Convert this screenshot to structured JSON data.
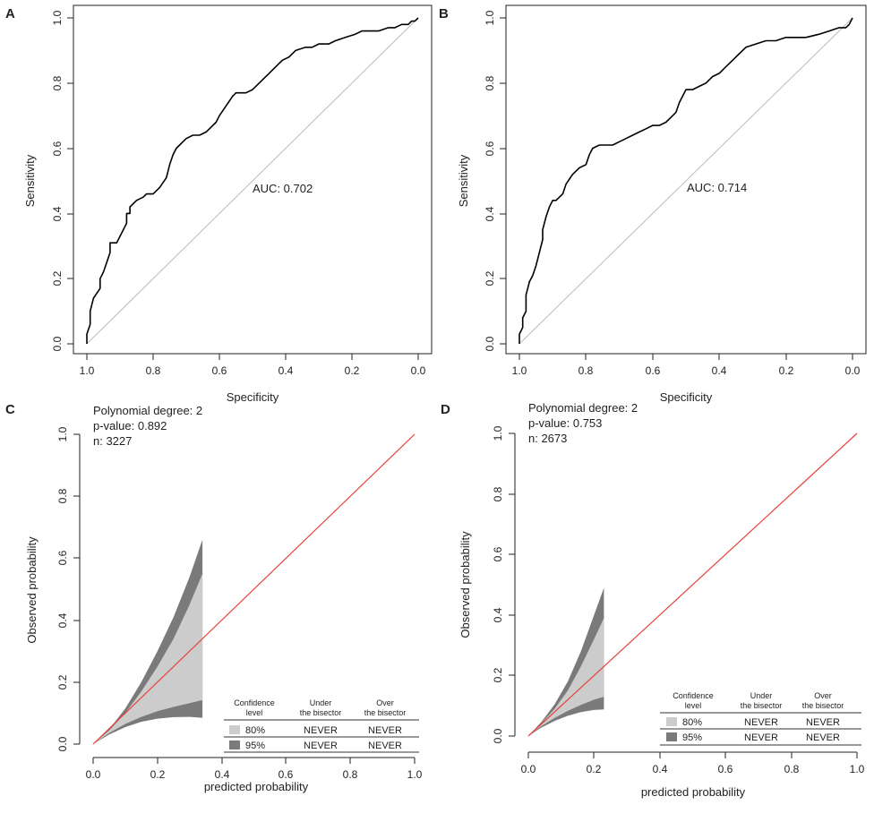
{
  "figure": {
    "panels": [
      {
        "letter": "A",
        "kind": "roc",
        "xlabel": "Specificity",
        "ylabel": "Sensitivity",
        "x_ticks": [
          "1.0",
          "0.8",
          "0.6",
          "0.4",
          "0.2",
          "0.0"
        ],
        "y_ticks": [
          "0.0",
          "0.2",
          "0.4",
          "0.6",
          "0.8",
          "1.0"
        ],
        "annotation": "AUC: 0.702"
      },
      {
        "letter": "B",
        "kind": "roc",
        "xlabel": "Specificity",
        "ylabel": "Sensitivity",
        "x_ticks": [
          "1.0",
          "0.8",
          "0.6",
          "0.4",
          "0.2",
          "0.0"
        ],
        "y_ticks": [
          "0.0",
          "0.2",
          "0.4",
          "0.6",
          "0.8",
          "1.0"
        ],
        "annotation": "AUC: 0.714"
      },
      {
        "letter": "C",
        "kind": "calibration",
        "xlabel": "predicted probability",
        "ylabel": "Observed probability",
        "x_ticks": [
          "0.0",
          "0.2",
          "0.4",
          "0.6",
          "0.8",
          "1.0"
        ],
        "y_ticks": [
          "0.0",
          "0.2",
          "0.4",
          "0.6",
          "0.8",
          "1.0"
        ],
        "stats": [
          "Polynomial degree: 2",
          "p-value: 0.892",
          "n: 3227"
        ],
        "legend": {
          "headers": [
            "Confidence\nlevel",
            "Under\nthe bisector",
            "Over\nthe bisector"
          ],
          "rows": [
            [
              "80%",
              "NEVER",
              "NEVER"
            ],
            [
              "95%",
              "NEVER",
              "NEVER"
            ]
          ]
        }
      },
      {
        "letter": "D",
        "kind": "calibration",
        "xlabel": "predicted probability",
        "ylabel": "Observed probability",
        "x_ticks": [
          "0.0",
          "0.2",
          "0.4",
          "0.6",
          "0.8",
          "1.0"
        ],
        "y_ticks": [
          "0.0",
          "0.2",
          "0.4",
          "0.6",
          "0.8",
          "1.0"
        ],
        "stats": [
          "Polynomial degree: 2",
          "p-value: 0.753",
          "n: 2673"
        ],
        "legend": {
          "headers": [
            "Confidence\nlevel",
            "Under\nthe bisector",
            "Over\nthe bisector"
          ],
          "rows": [
            [
              "80%",
              "NEVER",
              "NEVER"
            ],
            [
              "95%",
              "NEVER",
              "NEVER"
            ]
          ]
        }
      }
    ]
  },
  "chart_data": [
    {
      "panel": "A",
      "type": "line",
      "title": "",
      "xlabel": "Specificity",
      "ylabel": "Sensitivity",
      "xlim": [
        1.0,
        0.0
      ],
      "ylim": [
        0.0,
        1.0
      ],
      "annotations": [
        "AUC: 0.702"
      ],
      "series": [
        {
          "name": "ROC curve",
          "color": "#000000",
          "x": [
            1.0,
            1.0,
            0.99,
            0.99,
            0.98,
            0.98,
            0.96,
            0.96,
            0.95,
            0.94,
            0.93,
            0.93,
            0.91,
            0.9,
            0.89,
            0.88,
            0.88,
            0.87,
            0.87,
            0.86,
            0.85,
            0.83,
            0.82,
            0.81,
            0.8,
            0.78,
            0.76,
            0.75,
            0.74,
            0.73,
            0.72,
            0.71,
            0.7,
            0.68,
            0.66,
            0.64,
            0.63,
            0.61,
            0.6,
            0.58,
            0.56,
            0.55,
            0.53,
            0.52,
            0.5,
            0.48,
            0.45,
            0.43,
            0.41,
            0.39,
            0.37,
            0.34,
            0.32,
            0.3,
            0.27,
            0.25,
            0.22,
            0.19,
            0.17,
            0.14,
            0.12,
            0.09,
            0.07,
            0.05,
            0.03,
            0.02,
            0.01,
            0.0
          ],
          "y": [
            0.0,
            0.03,
            0.06,
            0.1,
            0.14,
            0.14,
            0.17,
            0.2,
            0.22,
            0.25,
            0.28,
            0.31,
            0.31,
            0.33,
            0.35,
            0.37,
            0.4,
            0.4,
            0.42,
            0.43,
            0.44,
            0.45,
            0.46,
            0.46,
            0.46,
            0.48,
            0.51,
            0.55,
            0.58,
            0.6,
            0.61,
            0.62,
            0.63,
            0.64,
            0.64,
            0.65,
            0.66,
            0.68,
            0.7,
            0.73,
            0.76,
            0.77,
            0.77,
            0.77,
            0.78,
            0.8,
            0.83,
            0.85,
            0.87,
            0.88,
            0.9,
            0.91,
            0.91,
            0.92,
            0.92,
            0.93,
            0.94,
            0.95,
            0.96,
            0.96,
            0.96,
            0.97,
            0.97,
            0.98,
            0.98,
            0.99,
            0.99,
            1.0
          ]
        },
        {
          "name": "chance line",
          "color": "#bbbbbb",
          "x": [
            1.0,
            0.0
          ],
          "y": [
            0.0,
            1.0
          ]
        }
      ]
    },
    {
      "panel": "B",
      "type": "line",
      "title": "",
      "xlabel": "Specificity",
      "ylabel": "Sensitivity",
      "xlim": [
        1.0,
        0.0
      ],
      "ylim": [
        0.0,
        1.0
      ],
      "annotations": [
        "AUC: 0.714"
      ],
      "series": [
        {
          "name": "ROC curve",
          "color": "#000000",
          "x": [
            1.0,
            1.0,
            0.99,
            0.99,
            0.98,
            0.98,
            0.97,
            0.96,
            0.95,
            0.94,
            0.93,
            0.93,
            0.92,
            0.91,
            0.9,
            0.89,
            0.87,
            0.86,
            0.84,
            0.82,
            0.8,
            0.79,
            0.78,
            0.76,
            0.74,
            0.72,
            0.7,
            0.68,
            0.66,
            0.64,
            0.62,
            0.6,
            0.58,
            0.56,
            0.54,
            0.53,
            0.52,
            0.51,
            0.5,
            0.48,
            0.46,
            0.44,
            0.42,
            0.4,
            0.38,
            0.36,
            0.34,
            0.32,
            0.29,
            0.26,
            0.23,
            0.2,
            0.17,
            0.14,
            0.1,
            0.07,
            0.04,
            0.02,
            0.01,
            0.0
          ],
          "y": [
            0.0,
            0.03,
            0.05,
            0.08,
            0.1,
            0.15,
            0.19,
            0.21,
            0.24,
            0.28,
            0.32,
            0.35,
            0.39,
            0.42,
            0.44,
            0.44,
            0.46,
            0.49,
            0.52,
            0.54,
            0.55,
            0.58,
            0.6,
            0.61,
            0.61,
            0.61,
            0.62,
            0.63,
            0.64,
            0.65,
            0.66,
            0.67,
            0.67,
            0.68,
            0.7,
            0.71,
            0.74,
            0.76,
            0.78,
            0.78,
            0.79,
            0.8,
            0.82,
            0.83,
            0.85,
            0.87,
            0.89,
            0.91,
            0.92,
            0.93,
            0.93,
            0.94,
            0.94,
            0.94,
            0.95,
            0.96,
            0.97,
            0.97,
            0.98,
            1.0
          ]
        },
        {
          "name": "chance line",
          "color": "#bbbbbb",
          "x": [
            1.0,
            0.0
          ],
          "y": [
            0.0,
            1.0
          ]
        }
      ]
    },
    {
      "panel": "C",
      "type": "area",
      "title": "",
      "xlabel": "predicted probability",
      "ylabel": "Observed probability",
      "xlim": [
        0.0,
        1.0
      ],
      "ylim": [
        0.0,
        1.0
      ],
      "annotations": [
        "Polynomial degree: 2",
        "p-value: 0.892",
        "n: 3227"
      ],
      "x": [
        0.0,
        0.05,
        0.1,
        0.15,
        0.2,
        0.25,
        0.3,
        0.34
      ],
      "series": [
        {
          "name": "95% lower",
          "color": "#7a7a7a",
          "values": [
            0.0,
            0.031,
            0.055,
            0.072,
            0.082,
            0.087,
            0.088,
            0.085
          ]
        },
        {
          "name": "80% lower",
          "color": "#cccccc",
          "values": [
            0.0,
            0.036,
            0.065,
            0.088,
            0.106,
            0.12,
            0.132,
            0.142
          ]
        },
        {
          "name": "80% upper",
          "color": "#cccccc",
          "values": [
            0.0,
            0.044,
            0.1,
            0.17,
            0.25,
            0.34,
            0.45,
            0.55
          ]
        },
        {
          "name": "95% upper",
          "color": "#7a7a7a",
          "values": [
            0.0,
            0.048,
            0.115,
            0.2,
            0.3,
            0.41,
            0.54,
            0.66
          ]
        },
        {
          "name": "bisector",
          "color": "#e8413c",
          "x": [
            0.0,
            1.0
          ],
          "values": [
            0.0,
            1.0
          ]
        }
      ],
      "legend_table": {
        "columns": [
          "Confidence level",
          "Under the bisector",
          "Over the bisector"
        ],
        "rows": [
          [
            "80%",
            "NEVER",
            "NEVER"
          ],
          [
            "95%",
            "NEVER",
            "NEVER"
          ]
        ]
      }
    },
    {
      "panel": "D",
      "type": "area",
      "title": "",
      "xlabel": "predicted probability",
      "ylabel": "Observed probability",
      "xlim": [
        0.0,
        1.0
      ],
      "ylim": [
        0.0,
        1.0
      ],
      "annotations": [
        "Polynomial degree: 2",
        "p-value: 0.753",
        "n: 2673"
      ],
      "x": [
        0.0,
        0.04,
        0.08,
        0.12,
        0.16,
        0.2,
        0.23
      ],
      "series": [
        {
          "name": "95% lower",
          "color": "#7a7a7a",
          "values": [
            0.0,
            0.028,
            0.05,
            0.067,
            0.079,
            0.086,
            0.088
          ]
        },
        {
          "name": "80% lower",
          "color": "#cccccc",
          "values": [
            0.0,
            0.033,
            0.06,
            0.083,
            0.103,
            0.12,
            0.13
          ]
        },
        {
          "name": "80% upper",
          "color": "#cccccc",
          "values": [
            0.0,
            0.042,
            0.09,
            0.15,
            0.23,
            0.32,
            0.39
          ]
        },
        {
          "name": "95% upper",
          "color": "#7a7a7a",
          "values": [
            0.0,
            0.047,
            0.105,
            0.18,
            0.28,
            0.4,
            0.49
          ]
        },
        {
          "name": "bisector",
          "color": "#e8413c",
          "x": [
            0.0,
            1.0
          ],
          "values": [
            0.0,
            1.0
          ]
        }
      ],
      "legend_table": {
        "columns": [
          "Confidence level",
          "Under the bisector",
          "Over the bisector"
        ],
        "rows": [
          [
            "80%",
            "NEVER",
            "NEVER"
          ],
          [
            "95%",
            "NEVER",
            "NEVER"
          ]
        ]
      }
    }
  ]
}
